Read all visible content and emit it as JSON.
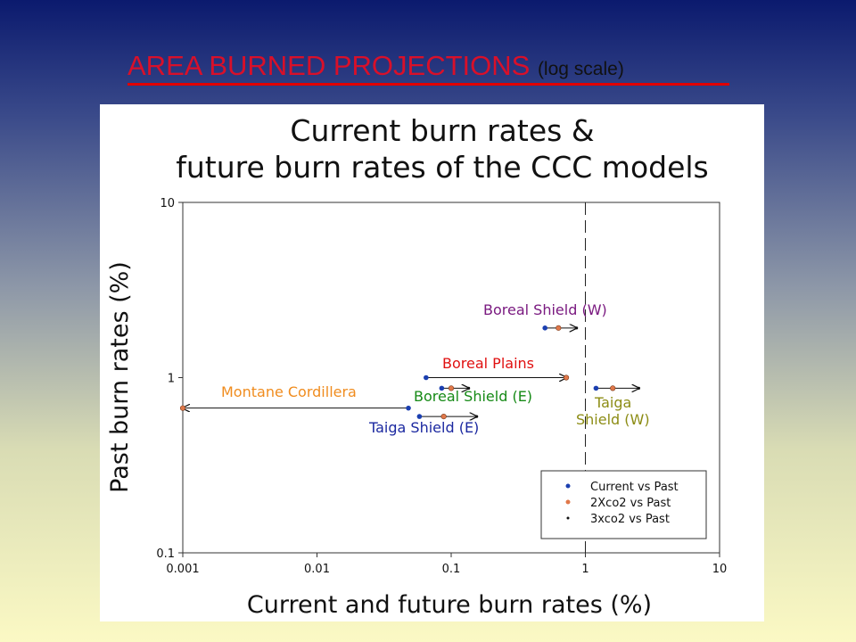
{
  "slide": {
    "title_main": "AREA BURNED PROJECTIONS",
    "title_sub": "(log scale)"
  },
  "chart_data": {
    "type": "scatter",
    "title_lines": [
      "Current burn rates &",
      "future burn rates of the CCC models"
    ],
    "xlabel": "Current and future burn rates (%)",
    "ylabel": "Past burn rates (%)",
    "x_scale": "log",
    "y_scale": "log",
    "xlim": [
      0.001,
      10
    ],
    "ylim": [
      0.1,
      10
    ],
    "x_ticks": [
      "0.001",
      "0.01",
      "0.1",
      "1",
      "10"
    ],
    "y_ticks": [
      "10",
      "1",
      "0.1"
    ],
    "grid": false,
    "reference_line": {
      "x": 1,
      "style": "dashed"
    },
    "legend": {
      "placement": "bottom-right",
      "entries": [
        "Current vs Past",
        "2Xco2 vs Past",
        "3xco2 vs Past"
      ]
    },
    "series": [
      {
        "name": "Current vs Past",
        "color": "#1b3fb0"
      },
      {
        "name": "2Xco2 vs Past",
        "color": "#e0784a"
      },
      {
        "name": "3xco2 vs Past",
        "color": "#111111"
      }
    ],
    "regions": [
      {
        "name": "Boreal Shield (W)",
        "color": "#7a1a80",
        "y": 1.92,
        "current": 0.5,
        "x2co2": 0.63,
        "x3co2": 0.86
      },
      {
        "name": "Boreal Plains",
        "color": "#e01010",
        "y": 1.0,
        "current": 0.065,
        "x2co2": 0.72,
        "x3co2": 0.72
      },
      {
        "name": "Montane Cordillera",
        "color": "#f08c1e",
        "y": 0.67,
        "current": 0.048,
        "x2co2": 0.001,
        "x3co2": 0.001
      },
      {
        "name": "Boreal Shield (E)",
        "color": "#168a16",
        "y": 0.87,
        "current": 0.085,
        "x2co2": 0.1,
        "x3co2": 0.135
      },
      {
        "name": "Taiga Shield (E)",
        "color": "#1b28a0",
        "y": 0.6,
        "current": 0.058,
        "x2co2": 0.088,
        "x3co2": 0.155
      },
      {
        "name": "Taiga Shield (W)",
        "color": "#8c8c14",
        "y": 0.87,
        "current": 1.2,
        "x2co2": 1.6,
        "x3co2": 2.5
      }
    ]
  }
}
